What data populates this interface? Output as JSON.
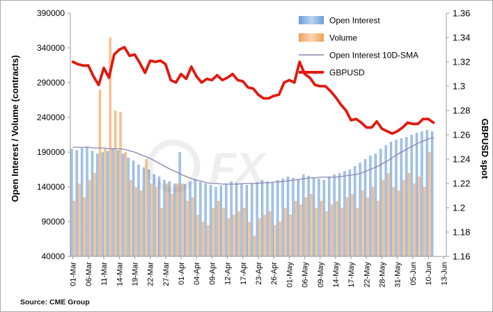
{
  "figure": {
    "source_note": "Source: CME Group",
    "watermark_text": "FX",
    "background": "#ffffff"
  },
  "chart_data": {
    "type": "bar",
    "title": "",
    "grid": false,
    "legend_position": "top-center-inside",
    "n_slots": 73,
    "x_tick_labels": [
      "01-Mar",
      "06-Mar",
      "11-Mar",
      "14-Mar",
      "19-Mar",
      "22-Mar",
      "27-Mar",
      "01-Apr",
      "04-Apr",
      "09-Apr",
      "12-Apr",
      "17-Apr",
      "23-Apr",
      "26-Apr",
      "01-May",
      "06-May",
      "09-May",
      "14-May",
      "17-May",
      "22-May",
      "28-May",
      "31-May",
      "05-Jun",
      "10-Jun",
      "13-Jun"
    ],
    "x_tick_positions": [
      0,
      3,
      6,
      9,
      12,
      15,
      18,
      21,
      24,
      27,
      30,
      33,
      36,
      39,
      42,
      45,
      48,
      51,
      54,
      57,
      60,
      63,
      66,
      69,
      72
    ],
    "left_axis": {
      "label": "Open Interest / Volume (contracts)",
      "min": 40000,
      "max": 390000,
      "ticks": [
        40000,
        90000,
        140000,
        190000,
        240000,
        290000,
        340000,
        390000
      ]
    },
    "right_axis": {
      "label": "GBPUSD spot",
      "min": 1.16,
      "max": 1.36,
      "ticks": [
        1.16,
        1.18,
        1.2,
        1.22,
        1.24,
        1.26,
        1.28,
        1.3,
        1.32,
        1.34,
        1.36
      ]
    },
    "series": [
      {
        "name": "Open Interest",
        "type": "bar",
        "axis": "left",
        "color": "#6d9eda",
        "values": [
          195000,
          193000,
          196000,
          198000,
          192000,
          188000,
          190000,
          192000,
          195000,
          193000,
          188000,
          182000,
          178000,
          172000,
          168000,
          165000,
          158000,
          155000,
          150000,
          148000,
          145000,
          190000,
          144000,
          148000,
          150000,
          147000,
          145000,
          143000,
          140000,
          142000,
          145000,
          148000,
          146000,
          144000,
          143000,
          145000,
          147000,
          150000,
          148000,
          146000,
          150000,
          152000,
          155000,
          153000,
          151000,
          158000,
          156000,
          154000,
          152000,
          150000,
          155000,
          158000,
          160000,
          163000,
          165000,
          170000,
          175000,
          180000,
          185000,
          188000,
          195000,
          200000,
          205000,
          208000,
          210000,
          212000,
          215000,
          218000,
          220000,
          222000,
          220000
        ]
      },
      {
        "name": "Volume",
        "type": "bar",
        "axis": "left",
        "color": "#efa256",
        "values": [
          120000,
          145000,
          125000,
          150000,
          160000,
          280000,
          195000,
          355000,
          250000,
          248000,
          190000,
          150000,
          140000,
          135000,
          180000,
          145000,
          140000,
          110000,
          145000,
          130000,
          145000,
          145000,
          120000,
          125000,
          100000,
          90000,
          85000,
          110000,
          120000,
          110000,
          95000,
          100000,
          105000,
          110000,
          90000,
          70000,
          95000,
          100000,
          105000,
          85000,
          90000,
          110000,
          100000,
          120000,
          115000,
          125000,
          130000,
          110000,
          120000,
          105000,
          115000,
          120000,
          110000,
          125000,
          130000,
          110000,
          135000,
          125000,
          140000,
          120000,
          150000,
          160000,
          140000,
          135000,
          150000,
          160000,
          145000,
          155000,
          140000,
          190000,
          null
        ]
      },
      {
        "name": "Open Interest 10D-SMA",
        "type": "line",
        "axis": "left",
        "color": "#8c80b4",
        "stroke_width": 1.3,
        "values": [
          197000,
          197000,
          197000,
          197000,
          196000,
          196000,
          196000,
          195000,
          195000,
          195000,
          194000,
          192000,
          190000,
          187000,
          184000,
          181000,
          177000,
          173000,
          169000,
          165000,
          162000,
          158000,
          155000,
          152000,
          150000,
          148000,
          146000,
          145000,
          145000,
          144000,
          144000,
          144000,
          144000,
          145000,
          145000,
          145000,
          145000,
          146000,
          146000,
          147000,
          147000,
          148000,
          149000,
          150000,
          151000,
          152000,
          153000,
          153000,
          154000,
          154000,
          154000,
          154000,
          155000,
          156000,
          157000,
          158000,
          160000,
          163000,
          166000,
          169000,
          173000,
          177000,
          182000,
          187000,
          191000,
          195000,
          199000,
          203000,
          206000,
          209000,
          211000
        ]
      },
      {
        "name": "GBPUSD",
        "type": "line",
        "axis": "right",
        "color": "#e2190f",
        "stroke_width": 3.8,
        "values": [
          1.32,
          1.318,
          1.317,
          1.317,
          1.308,
          1.301,
          1.315,
          1.307,
          1.326,
          1.33,
          1.332,
          1.325,
          1.326,
          1.319,
          1.311,
          1.321,
          1.32,
          1.321,
          1.318,
          1.305,
          1.303,
          1.31,
          1.306,
          1.316,
          1.308,
          1.303,
          1.306,
          1.305,
          1.309,
          1.305,
          1.307,
          1.31,
          1.305,
          1.304,
          1.299,
          1.298,
          1.293,
          1.29,
          1.29,
          1.292,
          1.293,
          1.303,
          1.305,
          1.303,
          1.32,
          1.31,
          1.307,
          1.301,
          1.3,
          1.3,
          1.296,
          1.291,
          1.285,
          1.28,
          1.272,
          1.273,
          1.27,
          1.266,
          1.266,
          1.271,
          1.265,
          1.263,
          1.261,
          1.263,
          1.266,
          1.27,
          1.269,
          1.269,
          1.273,
          1.273,
          1.27
        ]
      }
    ]
  }
}
